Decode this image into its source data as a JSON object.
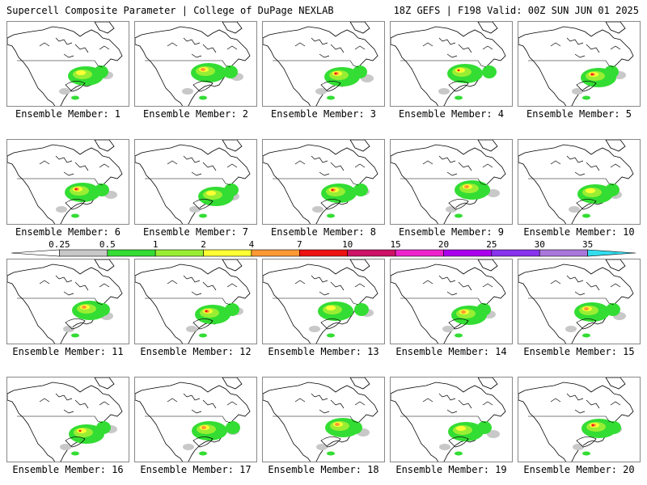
{
  "header": {
    "left": "Supercell Composite Parameter | College of DuPage NEXLAB",
    "right": "18Z GEFS | F198 Valid: 00Z SUN JUN 01 2025"
  },
  "member_prefix": "Ensemble Member: ",
  "members": [
    1,
    2,
    3,
    4,
    5,
    6,
    7,
    8,
    9,
    10,
    11,
    12,
    13,
    14,
    15,
    16,
    17,
    18,
    19,
    20
  ],
  "colors": {
    "gray": "#c8c8c8",
    "green": "#33dd33",
    "lime": "#99ee33",
    "yellow": "#ffff33",
    "orange": "#ff9933",
    "red": "#ee1111",
    "land_stroke": "#000000"
  },
  "colorbar": {
    "ticks": [
      "0.25",
      "0.5",
      "1",
      "2",
      "4",
      "7",
      "10",
      "15",
      "20",
      "25",
      "30",
      "35"
    ],
    "colors": [
      "#ffffff",
      "#c8c8c8",
      "#33dd33",
      "#99ee33",
      "#ffff33",
      "#ff9933",
      "#ee1111",
      "#cc1166",
      "#ee22cc",
      "#aa00ee",
      "#8833ee",
      "#aa77dd",
      "#33ddee"
    ]
  }
}
